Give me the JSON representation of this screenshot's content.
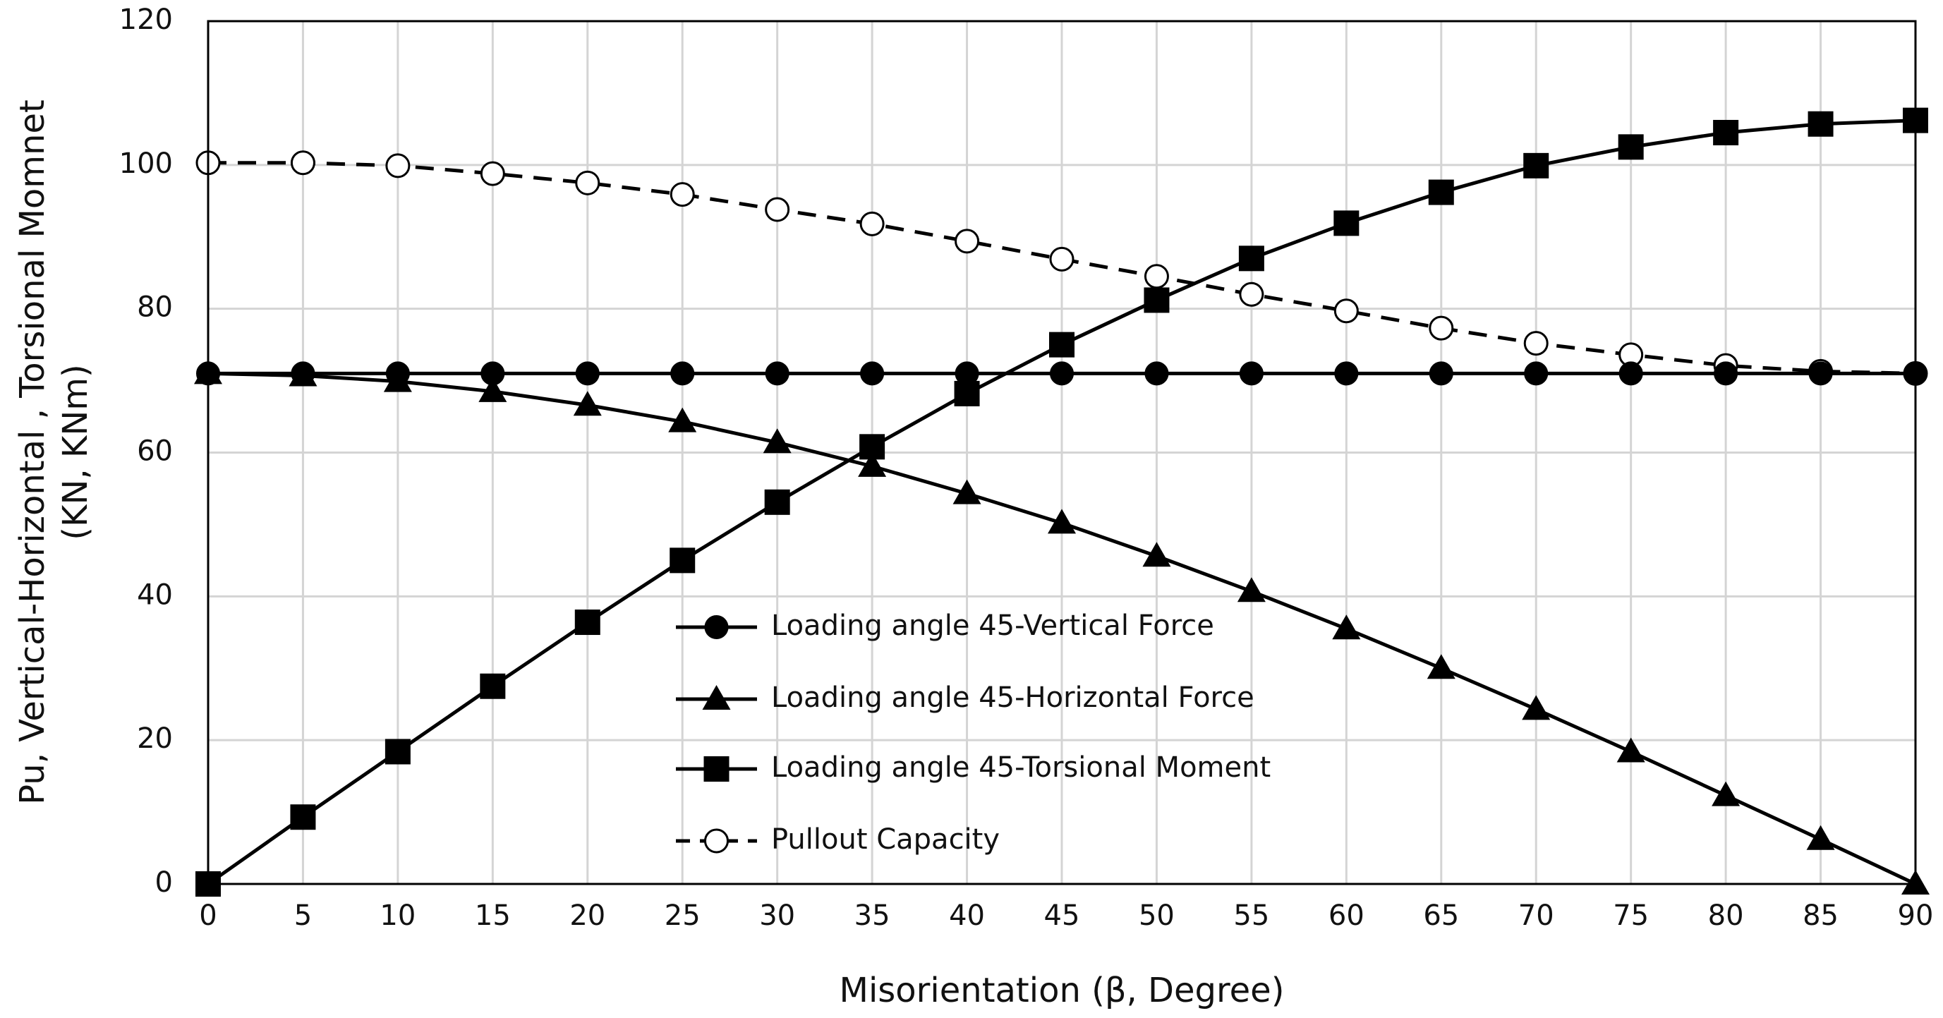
{
  "chart_data": {
    "type": "line",
    "xlabel": "Misorientation (β, Degree)",
    "ylabel_lines": [
      "Pu, Vertical-Horizontal , Torsional Momnet",
      "(KN, KNm)"
    ],
    "xlim": [
      0,
      90
    ],
    "ylim": [
      0,
      120
    ],
    "x_ticks": [
      0,
      5,
      10,
      15,
      20,
      25,
      30,
      35,
      40,
      45,
      50,
      55,
      60,
      65,
      70,
      75,
      80,
      85,
      90
    ],
    "y_ticks": [
      0,
      20,
      40,
      60,
      80,
      100,
      120
    ],
    "grid": true,
    "legend_position": "center",
    "x": [
      0,
      5,
      10,
      15,
      20,
      25,
      30,
      35,
      40,
      45,
      50,
      55,
      60,
      65,
      70,
      75,
      80,
      85,
      90
    ],
    "series": [
      {
        "name": "Loading angle 45-Vertical Force",
        "marker": "circle-filled",
        "line": "solid",
        "values": [
          71,
          71,
          71,
          71,
          71,
          71,
          71,
          71,
          71,
          71,
          71,
          71,
          71,
          71,
          71,
          71,
          71,
          71,
          71
        ]
      },
      {
        "name": "Loading angle 45-Horizontal Force",
        "marker": "triangle-filled",
        "line": "solid",
        "values": [
          71,
          70.7,
          69.9,
          68.5,
          66.6,
          64.3,
          61.4,
          58.1,
          54.3,
          50.2,
          45.6,
          40.7,
          35.5,
          30,
          24.3,
          18.4,
          12.3,
          6.2,
          0
        ]
      },
      {
        "name": "Loading angle 45-Torsional Moment",
        "marker": "square-filled",
        "line": "solid",
        "values": [
          0,
          9.3,
          18.4,
          27.5,
          36.4,
          45,
          53.1,
          60.8,
          68.2,
          75,
          81.2,
          87,
          91.9,
          96.2,
          99.9,
          102.5,
          104.5,
          105.7,
          106.2
        ]
      },
      {
        "name": "Pullout Capacity",
        "marker": "circle-open",
        "line": "dashed",
        "values": [
          100.3,
          100.3,
          99.9,
          98.8,
          97.5,
          95.9,
          93.8,
          91.8,
          89.4,
          86.9,
          84.5,
          82,
          79.7,
          77.3,
          75.2,
          73.6,
          72.1,
          71.3,
          71
        ]
      }
    ]
  }
}
